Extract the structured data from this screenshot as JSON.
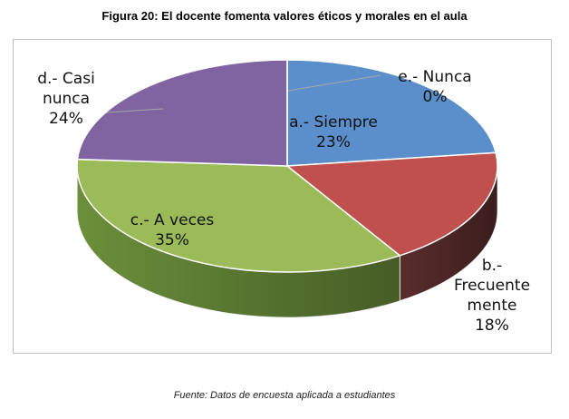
{
  "figure": {
    "title": "Figura 20: El docente fomenta valores éticos y morales en el aula",
    "source": "Fuente: Datos de encuesta aplicada a estudiantes"
  },
  "chart_data": {
    "type": "pie",
    "style": "3d",
    "title": "",
    "legend": "none",
    "slices": [
      {
        "label": "a.- Siempre",
        "lines": [
          "a.- Siempre"
        ],
        "value": 23,
        "percent_label": "23%",
        "color": "#5b8fcb",
        "side_color": "#3f6ea3"
      },
      {
        "label": "b.- Frecuentemente",
        "lines": [
          "b.-",
          "Frecuente",
          "mente"
        ],
        "value": 18,
        "percent_label": "18%",
        "color": "#c0504d",
        "side_color": "#5a2d2d"
      },
      {
        "label": "c.- A veces",
        "lines": [
          "c.- A veces"
        ],
        "value": 35,
        "percent_label": "35%",
        "color": "#9bbb59",
        "side_color": "#6b8f3a"
      },
      {
        "label": "d.- Casi nunca",
        "lines": [
          "d.- Casi",
          "nunca"
        ],
        "value": 24,
        "percent_label": "24%",
        "color": "#8064a2",
        "side_color": "#5b4578"
      },
      {
        "label": "e.- Nunca",
        "lines": [
          "e.- Nunca"
        ],
        "value": 0,
        "percent_label": "0%",
        "color": "#4bacc6",
        "side_color": "#31859c"
      }
    ]
  }
}
